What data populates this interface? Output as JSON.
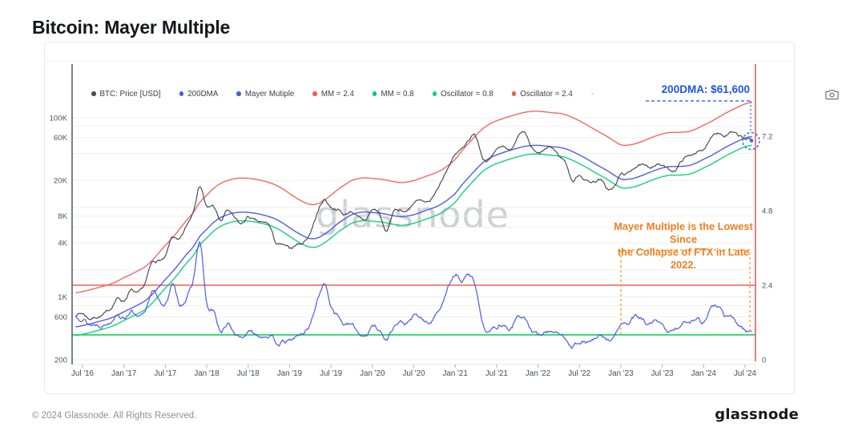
{
  "header": {
    "title": "Bitcoin: Mayer Multiple"
  },
  "legend": {
    "items": [
      {
        "label": "BTC: Price [USD]",
        "color": "#4a4d52"
      },
      {
        "label": "200DMA",
        "color": "#4c5ce0"
      },
      {
        "label": "Mayer Mutiple",
        "color": "#4c5ce0"
      },
      {
        "label": "MM = 2.4",
        "color": "#f25c55"
      },
      {
        "label": "MM = 0.8",
        "color": "#0bc96e"
      },
      {
        "label": "Oscillator = 0.8",
        "color": "#0bd17a"
      },
      {
        "label": "Oscillator = 2.4",
        "color": "#f25c55"
      }
    ],
    "overflow_label": "-"
  },
  "annotations": {
    "dma_label": "200DMA: $61,600",
    "dma_color": "#1d55e4",
    "ftx_line1": "Mayer Multiple is the Lowest Since",
    "ftx_line2": "the Collapse of FTX in Late 2022.",
    "ftx_color": "#f07f1f"
  },
  "watermark": "glassnode",
  "footer": {
    "copyright": "© 2024 Glassnode. All Rights Reserved.",
    "brand": "glassnode"
  },
  "chart_data": {
    "type": "line",
    "title": "Bitcoin: Mayer Multiple",
    "x": {
      "start_month": "2016-06",
      "end_month": "2024-08",
      "interval": "monthly",
      "points": 99,
      "tick_labels": [
        "Jul '16",
        "Jan '17",
        "Jul '17",
        "Jan '18",
        "Jul '18",
        "Jan '19",
        "Jul '19",
        "Jan '20",
        "Jul '20",
        "Jan '21",
        "Jul '21",
        "Jan '22",
        "Jul '22",
        "Jan '23",
        "Jul '23",
        "Jan '24",
        "Jul '24"
      ],
      "tick_month_offsets": [
        1,
        7,
        13,
        19,
        25,
        31,
        37,
        43,
        49,
        55,
        61,
        67,
        73,
        79,
        85,
        91,
        97
      ]
    },
    "y_left": {
      "scale": "log",
      "unit": "USD",
      "tick_labels": [
        "100K",
        "60K",
        "20K",
        "8K",
        "4K",
        "1K",
        "600",
        "200"
      ],
      "tick_values": [
        100000,
        60000,
        20000,
        8000,
        4000,
        1000,
        600,
        200
      ],
      "minor_grid": [
        200,
        400,
        600,
        800,
        1000,
        2000,
        4000,
        6000,
        8000,
        10000,
        20000,
        40000,
        60000,
        80000,
        100000
      ]
    },
    "y_right": {
      "scale": "linear",
      "tick_labels": [
        "7.2",
        "4.8",
        "2.4",
        "0"
      ],
      "tick_values": [
        7.2,
        4.8,
        2.4,
        0
      ],
      "range": [
        0,
        9.7
      ]
    },
    "thresholds": {
      "mm_upper": 2.4,
      "mm_lower": 0.8,
      "osc_upper": 2.4,
      "osc_lower": 0.8
    },
    "series": [
      {
        "name": "BTC: Price [USD]",
        "axis": "left",
        "color": "#3d4045",
        "style": "noisy",
        "source": "price_usd"
      },
      {
        "name": "200DMA",
        "axis": "left",
        "color": "#4f5de4",
        "style": "smooth",
        "source": "dma200_usd"
      },
      {
        "name": "Mayer Mutiple",
        "axis": "right",
        "color": "#4c5ce8",
        "style": "noisy",
        "source": "price_usd / dma200_usd"
      },
      {
        "name": "MM = 2.4",
        "axis": "left",
        "color": "#f26862",
        "style": "smooth",
        "source": "dma200_usd * 2.4"
      },
      {
        "name": "MM = 0.8",
        "axis": "left",
        "color": "#12d17e",
        "style": "smooth",
        "source": "dma200_usd * 0.8"
      },
      {
        "name": "Oscillator = 0.8",
        "axis": "right",
        "color": "#00c853",
        "style": "hline",
        "value": 0.8
      },
      {
        "name": "Oscillator = 2.4",
        "axis": "right",
        "color": "#ef615b",
        "style": "hline",
        "value": 2.4
      }
    ],
    "price_usd": [
      640,
      660,
      580,
      605,
      635,
      730,
      960,
      920,
      1180,
      1070,
      1350,
      2300,
      2550,
      2750,
      4600,
      4200,
      5900,
      9000,
      17800,
      10100,
      10300,
      7000,
      9250,
      7500,
      6400,
      7750,
      7000,
      6600,
      6350,
      4050,
      3750,
      3450,
      3850,
      4100,
      5300,
      8550,
      12200,
      10100,
      9600,
      8300,
      9150,
      7550,
      7200,
      9350,
      8550,
      5300,
      8650,
      9450,
      9150,
      11350,
      11650,
      10800,
      13800,
      19700,
      29000,
      38500,
      45200,
      58900,
      62000,
      37300,
      35000,
      41500,
      47100,
      43800,
      61300,
      65000,
      46200,
      38500,
      43200,
      45500,
      37700,
      31800,
      19900,
      23300,
      20050,
      19400,
      20500,
      16200,
      16550,
      23100,
      23500,
      28500,
      29250,
      27200,
      30450,
      29200,
      26000,
      26950,
      34650,
      37700,
      42250,
      42550,
      61200,
      71300,
      63800,
      67500,
      61800,
      57500,
      56000
    ],
    "dma200_usd": [
      465,
      480,
      500,
      525,
      550,
      580,
      625,
      685,
      745,
      815,
      900,
      1050,
      1280,
      1570,
      1900,
      2350,
      2950,
      3600,
      4750,
      5700,
      6800,
      7700,
      8300,
      8700,
      8850,
      8800,
      8600,
      8300,
      7900,
      7400,
      6700,
      5950,
      5300,
      4800,
      4500,
      4550,
      5000,
      5700,
      6600,
      7450,
      8300,
      8750,
      8900,
      8750,
      8650,
      8400,
      8100,
      7900,
      8000,
      8300,
      8800,
      9400,
      10000,
      10900,
      12300,
      14300,
      17900,
      21800,
      26500,
      31500,
      35500,
      38500,
      41000,
      43500,
      45700,
      47800,
      49000,
      49300,
      48500,
      47500,
      46800,
      45000,
      42000,
      38500,
      35000,
      31500,
      28500,
      25800,
      23000,
      20800,
      20600,
      21300,
      22600,
      24300,
      26000,
      27500,
      28500,
      28600,
      28800,
      29500,
      31500,
      34500,
      37500,
      41500,
      46000,
      50500,
      55000,
      59500,
      61600
    ],
    "end_label": {
      "series": "200DMA",
      "value_usd": 61600,
      "label": "200DMA: $61,600"
    },
    "ftx_box": {
      "from_tick": "Jan '23",
      "to_tick": "Jul '24",
      "osc_top": 3.5,
      "osc_bottom": 0.8
    },
    "legend_position": "top",
    "grid": "horizontal-only"
  }
}
